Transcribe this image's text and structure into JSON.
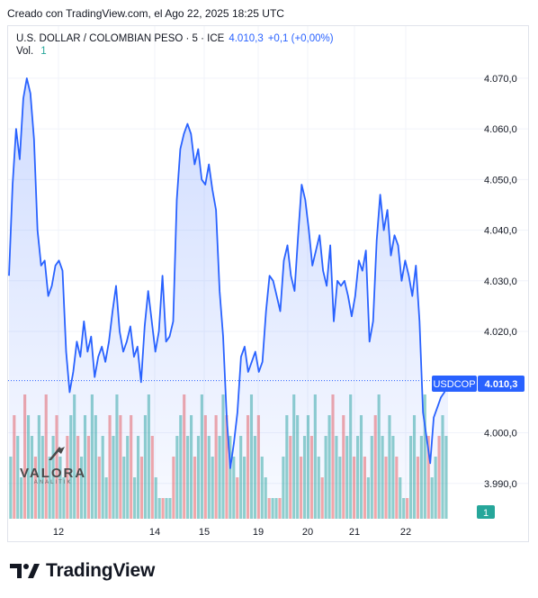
{
  "caption": "Creado con TradingView.com, el Ago 22, 2025 18:25 UTC",
  "legend": {
    "symbol": "U.S. DOLLAR / COLOMBIAN PESO · 5 · ICE",
    "price": "4.010,3",
    "change": "+0,1 (+0,00%)",
    "vol_label": "Vol.",
    "vol_value": "1"
  },
  "price_badge": {
    "ticker": "USDCOP",
    "price": "4.010,3"
  },
  "volume_badge": "1",
  "watermark": {
    "name": "VALORA",
    "sub": "ANALITIK"
  },
  "brand": "TradingView",
  "colors": {
    "line": "#2962ff",
    "area": "#2962ff",
    "vol_up": "#26a69a",
    "vol_down": "#ef5350",
    "price_badge": "#2962ff"
  },
  "chart_data": {
    "type": "area",
    "title": "U.S. DOLLAR / COLOMBIAN PESO · 5 · ICE",
    "ylim": [
      3988,
      4073
    ],
    "y_ticks": [
      {
        "value": 4070,
        "label": "4.070,0"
      },
      {
        "value": 4060,
        "label": "4.060,0"
      },
      {
        "value": 4050,
        "label": "4.050,0"
      },
      {
        "value": 4040,
        "label": "4.040,0"
      },
      {
        "value": 4030,
        "label": "4.030,0"
      },
      {
        "value": 4020,
        "label": "4.020,0"
      },
      {
        "value": 4000,
        "label": "4.000,0"
      },
      {
        "value": 3990,
        "label": "3.990,0"
      }
    ],
    "x_ticks": [
      "12",
      "14",
      "15",
      "19",
      "20",
      "21",
      "22"
    ],
    "last_price": 4010.3,
    "series": [
      {
        "values": [
          4031,
          4049,
          4060,
          4054,
          4066,
          4070,
          4067,
          4058,
          4040,
          4033,
          4034,
          4027,
          4029,
          4033,
          4034,
          4032,
          4016,
          4008,
          4012,
          4018,
          4015,
          4022,
          4016,
          4019,
          4011,
          4015,
          4017,
          4014,
          4018,
          4024,
          4029,
          4020,
          4016,
          4018,
          4021,
          4015,
          4017,
          4010,
          4021,
          4028,
          4022,
          4016,
          4020,
          4031,
          4018,
          4019,
          4022,
          4046,
          4056,
          4059,
          4061,
          4059,
          4053,
          4056,
          4050,
          4049,
          4053,
          4048,
          4044,
          4028,
          4019,
          4003,
          3993,
          3998,
          4004,
          4015,
          4017,
          4012,
          4014,
          4016,
          4012,
          4014,
          4024,
          4031,
          4030,
          4027,
          4024,
          4034,
          4037,
          4031,
          4028,
          4039,
          4049,
          4046,
          4040,
          4033,
          4036,
          4039,
          4032,
          4029,
          4037,
          4022,
          4030,
          4029,
          4030,
          4027,
          4023,
          4027,
          4034,
          4032,
          4036,
          4018,
          4022,
          4038,
          4047,
          4040,
          4044,
          4035,
          4039,
          4037,
          4030,
          4034,
          4031,
          4027,
          4033,
          4022,
          4004,
          3999,
          3994,
          4003,
          4005,
          4007,
          4008,
          4010.3
        ]
      }
    ],
    "volume": {
      "values": [
        3,
        5,
        4,
        2,
        6,
        5,
        4,
        3,
        5,
        4,
        6,
        3,
        4,
        5,
        3,
        2,
        4,
        5,
        6,
        4,
        3,
        5,
        4,
        6,
        5,
        3,
        4,
        2,
        5,
        4,
        6,
        5,
        3,
        4,
        5,
        2,
        4,
        3,
        5,
        6,
        4,
        2,
        1,
        1,
        1,
        1,
        3,
        4,
        5,
        6,
        4,
        5,
        3,
        4,
        6,
        5,
        4,
        3,
        5,
        4,
        6,
        5,
        4,
        3,
        2,
        4,
        3,
        5,
        6,
        4,
        5,
        3,
        2,
        1,
        1,
        1,
        1,
        3,
        5,
        4,
        6,
        5,
        3,
        4,
        5,
        4,
        6,
        3,
        2,
        4,
        5,
        6,
        4,
        3,
        5,
        4,
        6,
        3,
        4,
        5,
        3,
        2,
        4,
        5,
        6,
        4,
        3,
        5,
        4,
        3,
        2,
        1,
        1,
        4,
        5,
        3,
        4,
        6,
        4,
        2,
        3,
        4,
        5,
        4
      ],
      "max": 6
    }
  }
}
